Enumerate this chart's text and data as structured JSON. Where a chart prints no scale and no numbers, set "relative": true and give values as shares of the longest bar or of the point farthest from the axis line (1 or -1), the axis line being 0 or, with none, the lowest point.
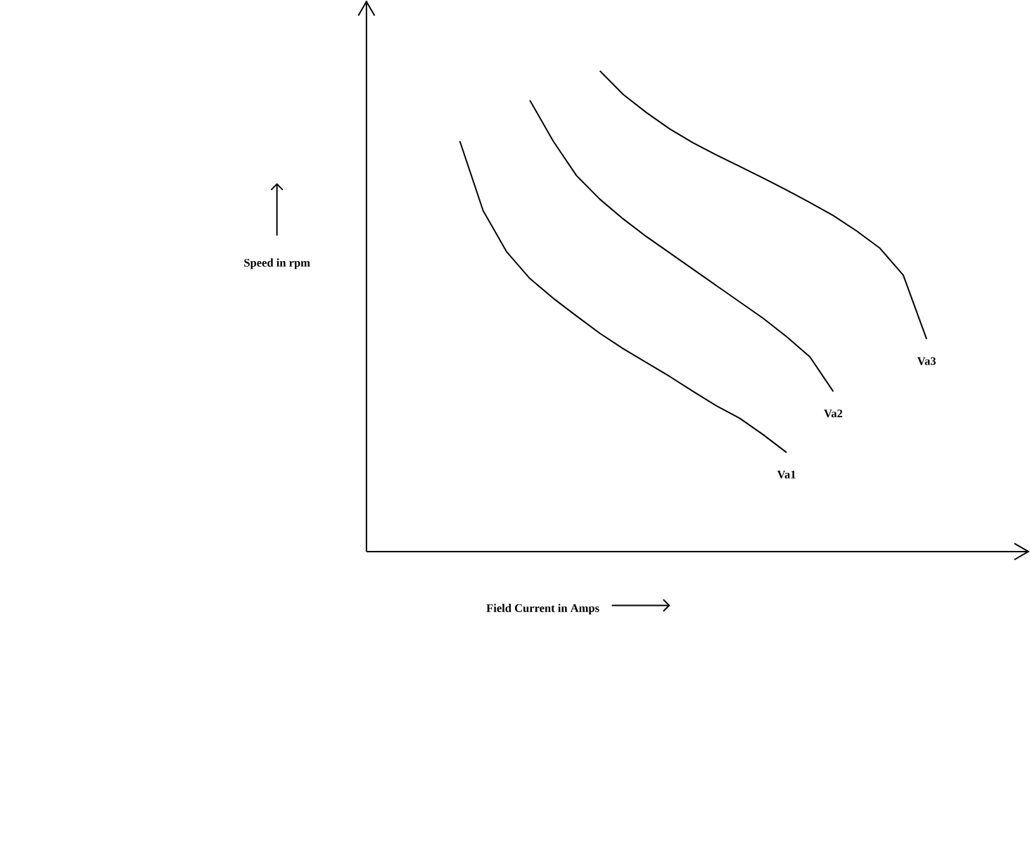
{
  "chart_data": {
    "type": "line",
    "relative": true,
    "xlabel": "Field Current in Amps",
    "ylabel": "Speed in rpm",
    "marker": "none",
    "categories": [
      null,
      null,
      null,
      null,
      null,
      null,
      null,
      null,
      null,
      null,
      null,
      null,
      null,
      null,
      null,
      null,
      null,
      null,
      null,
      null,
      null,
      null,
      null,
      null,
      null,
      null,
      null,
      null,
      null
    ],
    "series": [
      {
        "name": "Va1",
        "color": "#000000",
        "values": [
          null,
          null,
          null,
          null,
          0.854,
          0.709,
          0.624,
          0.568,
          0.527,
          0.49,
          0.454,
          0.422,
          0.393,
          0.364,
          0.333,
          0.303,
          0.277,
          0.243,
          0.206,
          null,
          null,
          null,
          null,
          null,
          null,
          null,
          null,
          null,
          null
        ]
      },
      {
        "name": "Va2",
        "color": "#000000",
        "values": [
          null,
          null,
          null,
          null,
          null,
          null,
          null,
          0.939,
          0.854,
          0.782,
          0.733,
          0.692,
          0.655,
          0.621,
          0.587,
          0.553,
          0.519,
          0.485,
          0.447,
          0.405,
          0.333,
          null,
          null,
          null,
          null,
          null,
          null,
          null,
          null
        ]
      },
      {
        "name": "Va3",
        "color": "#000000",
        "values": [
          null,
          null,
          null,
          null,
          null,
          null,
          null,
          null,
          null,
          null,
          1.0,
          0.951,
          0.913,
          0.879,
          0.85,
          0.825,
          0.801,
          0.777,
          0.752,
          0.726,
          0.699,
          0.667,
          0.631,
          0.575,
          0.442,
          null,
          null,
          null,
          null
        ]
      }
    ]
  }
}
